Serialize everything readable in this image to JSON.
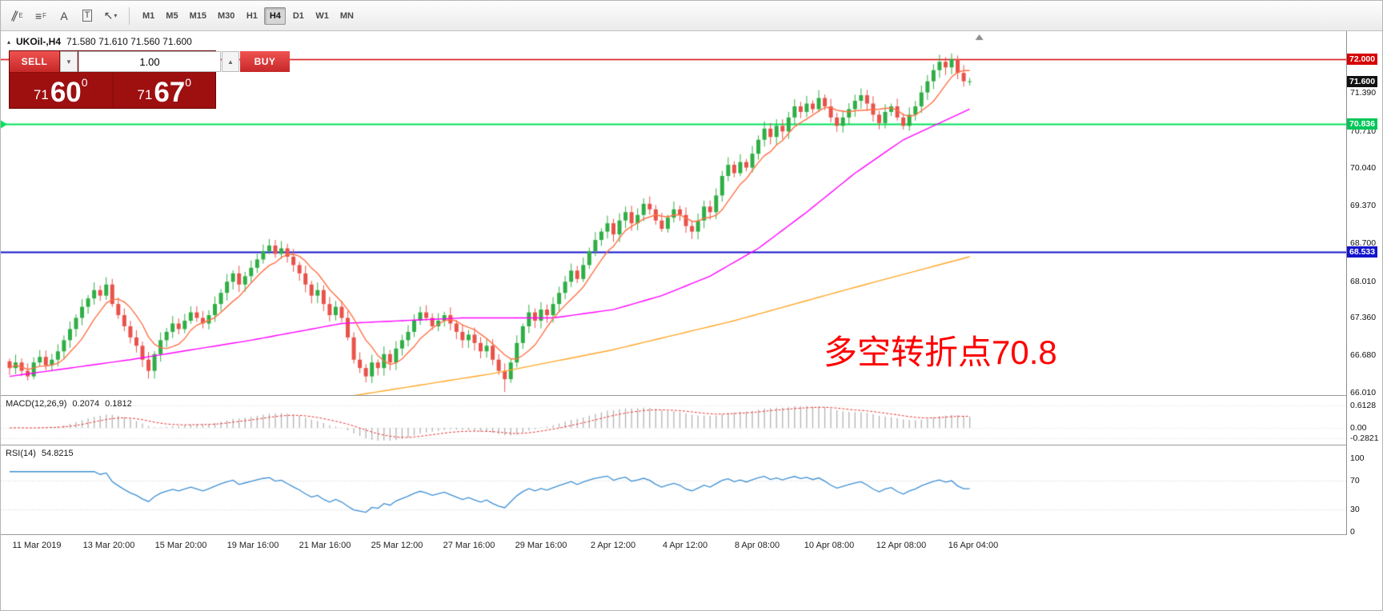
{
  "toolbar": {
    "tools": [
      {
        "name": "equidistant-channel-icon",
        "glyph": "∥",
        "sub": "E",
        "rotate": true
      },
      {
        "name": "fibonacci-retracement-icon",
        "glyph": "≡",
        "sub": "F"
      },
      {
        "name": "text-icon",
        "glyph": "A",
        "sub": ""
      },
      {
        "name": "text-label-icon",
        "glyph": "T",
        "sub": "",
        "boxed": true
      },
      {
        "name": "arrows-icon",
        "glyph": "↖",
        "sub": "▾"
      }
    ],
    "timeframes": [
      "M1",
      "M5",
      "M15",
      "M30",
      "H1",
      "H4",
      "D1",
      "W1",
      "MN"
    ],
    "active_timeframe": "H4"
  },
  "icons": {
    "collapse_triangle": "▴",
    "volume_down": "▼",
    "volume_up": "▲"
  },
  "chart": {
    "title_symbol": "UKOil-,H4",
    "title_ohlc": "71.580 71.610 71.560 71.600",
    "trade_panel": {
      "sell_label": "SELL",
      "buy_label": "BUY",
      "volume": "1.00",
      "bid": {
        "small": "71",
        "big": "60",
        "sup": "0"
      },
      "ask": {
        "small": "71",
        "big": "67",
        "sup": "0"
      }
    },
    "annotation": "多空转折点70.8"
  },
  "chart_data": {
    "type": "candlestick",
    "symbol": "UKOil-",
    "timeframe": "H4",
    "title": "UKOil-,H4 71.580 71.610 71.560 71.600",
    "ohlc_display": {
      "open": "71.580",
      "high": "71.610",
      "low": "71.560",
      "close": "71.600"
    },
    "price_range": {
      "min": 65.95,
      "max": 72.5
    },
    "y_ticks": [
      71.39,
      70.71,
      70.04,
      69.37,
      68.7,
      68.01,
      67.36,
      66.68,
      66.01
    ],
    "price_badges": [
      {
        "text": "72.000",
        "price": 72.0,
        "bg": "#d60000",
        "fg": "#ffffff"
      },
      {
        "text": "71.600",
        "price": 71.6,
        "bg": "#111111",
        "fg": "#ffffff"
      },
      {
        "text": "70.836",
        "price": 70.836,
        "bg": "#00c657",
        "fg": "#ffffff"
      },
      {
        "text": "68.533",
        "price": 68.533,
        "bg": "#1414cc",
        "fg": "#ffffff"
      }
    ],
    "horizontal_lines": [
      {
        "price": 72.0,
        "color": "#d60000",
        "width": 1.5
      },
      {
        "price": 70.836,
        "color": "#00e05a",
        "width": 2
      },
      {
        "price": 68.533,
        "color": "#1414cc",
        "width": 2
      }
    ],
    "x_labels": [
      "11 Mar 2019",
      "13 Mar 20:00",
      "15 Mar 20:00",
      "19 Mar 16:00",
      "21 Mar 16:00",
      "25 Mar 12:00",
      "27 Mar 16:00",
      "29 Mar 16:00",
      "2 Apr 12:00",
      "4 Apr 12:00",
      "8 Apr 08:00",
      "10 Apr 08:00",
      "12 Apr 08:00",
      "16 Apr 04:00"
    ],
    "closes": [
      66.45,
      66.55,
      66.4,
      66.3,
      66.55,
      66.65,
      66.5,
      66.6,
      66.75,
      66.95,
      67.15,
      67.35,
      67.55,
      67.7,
      67.85,
      67.75,
      67.95,
      67.6,
      67.4,
      67.2,
      67.0,
      66.85,
      66.6,
      66.4,
      66.7,
      66.95,
      67.1,
      67.25,
      67.15,
      67.3,
      67.45,
      67.35,
      67.25,
      67.4,
      67.6,
      67.8,
      68.0,
      68.15,
      67.95,
      68.1,
      68.25,
      68.4,
      68.55,
      68.65,
      68.5,
      68.6,
      68.45,
      68.3,
      68.15,
      67.95,
      67.75,
      67.85,
      67.6,
      67.4,
      67.55,
      67.35,
      67.0,
      66.6,
      66.45,
      66.3,
      66.55,
      66.45,
      66.7,
      66.55,
      66.8,
      66.95,
      67.1,
      67.3,
      67.45,
      67.35,
      67.2,
      67.3,
      67.4,
      67.25,
      67.1,
      66.95,
      67.05,
      66.9,
      66.75,
      66.85,
      66.6,
      66.4,
      66.25,
      66.55,
      66.9,
      67.2,
      67.45,
      67.3,
      67.5,
      67.4,
      67.6,
      67.8,
      68.0,
      68.2,
      68.05,
      68.3,
      68.55,
      68.75,
      68.9,
      69.05,
      68.85,
      69.1,
      69.25,
      69.05,
      69.2,
      69.4,
      69.3,
      69.1,
      68.95,
      69.15,
      69.3,
      69.2,
      69.0,
      68.9,
      69.1,
      69.35,
      69.25,
      69.55,
      69.9,
      70.1,
      69.95,
      70.15,
      70.05,
      70.3,
      70.55,
      70.75,
      70.6,
      70.8,
      70.7,
      70.95,
      71.15,
      71.05,
      71.2,
      71.1,
      71.3,
      71.15,
      70.95,
      70.8,
      70.95,
      71.1,
      71.25,
      71.35,
      71.2,
      71.0,
      70.85,
      71.05,
      71.15,
      70.95,
      70.8,
      71.0,
      71.15,
      71.4,
      71.6,
      71.8,
      71.95,
      71.85,
      72.0,
      71.75,
      71.6,
      71.6
    ],
    "special_wicks": {
      "82": {
        "low": 66.02
      },
      "156": {
        "high": 72.1
      }
    },
    "colors": {
      "bull": "#2fae45",
      "bear": "#e8524a",
      "ma_fast": "#ff7043",
      "ma_medium": "#ff00ff",
      "ma_slow": "#ffa726",
      "rsi": "#3c8fd4",
      "macd_hist": "#b2b2b2",
      "macd_signal": "#e53935"
    },
    "ma_medium_anchors": [
      [
        0,
        66.3
      ],
      [
        20,
        66.6
      ],
      [
        40,
        66.95
      ],
      [
        55,
        67.25
      ],
      [
        75,
        67.35
      ],
      [
        90,
        67.35
      ],
      [
        100,
        67.5
      ],
      [
        108,
        67.75
      ],
      [
        116,
        68.1
      ],
      [
        124,
        68.6
      ],
      [
        132,
        69.25
      ],
      [
        140,
        69.95
      ],
      [
        148,
        70.55
      ],
      [
        159,
        71.1
      ]
    ],
    "ma_slow_anchors": [
      [
        55,
        65.92
      ],
      [
        80,
        66.35
      ],
      [
        100,
        66.78
      ],
      [
        120,
        67.3
      ],
      [
        140,
        67.9
      ],
      [
        159,
        68.45
      ]
    ],
    "macd": {
      "label": "MACD(12,26,9)",
      "value_main": "0.2074",
      "value_signal": "0.1812",
      "params": [
        12,
        26,
        9
      ],
      "scale_labels": [
        "0.6128",
        "0.00",
        "-0.2821"
      ],
      "scale_values": [
        0.6128,
        0,
        -0.2821
      ]
    },
    "rsi": {
      "label": "RSI(14)",
      "value": "54.8215",
      "period": 14,
      "levels": [
        100,
        70,
        30,
        0
      ],
      "dotted_levels": [
        70,
        30
      ]
    }
  }
}
